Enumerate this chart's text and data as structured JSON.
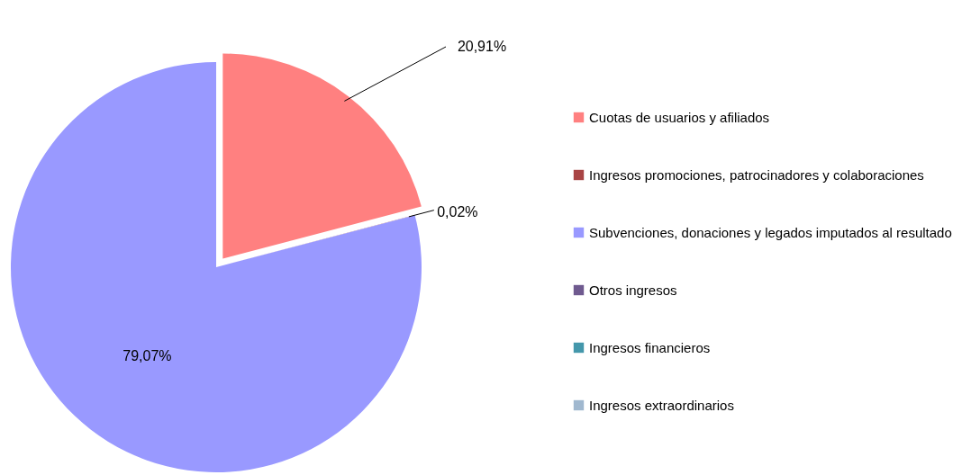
{
  "chart_data": {
    "type": "pie",
    "categories": [
      "Cuotas de usuarios y afiliados",
      "Ingresos promociones, patrocinadores y colaboraciones",
      "Subvenciones, donaciones y legados imputados al resultado",
      "Otros ingresos",
      "Ingresos financieros",
      "Ingresos extraordinarios"
    ],
    "values": [
      20.91,
      0.02,
      79.07,
      0,
      0,
      0
    ],
    "colors": [
      "#ff8080",
      "#a94444",
      "#9999ff",
      "#6f5a8f",
      "#4497ab",
      "#a0b8cf"
    ],
    "value_labels": [
      "20,91%",
      "0,02%",
      "79,07%",
      null,
      null,
      null
    ],
    "legend": "right"
  }
}
